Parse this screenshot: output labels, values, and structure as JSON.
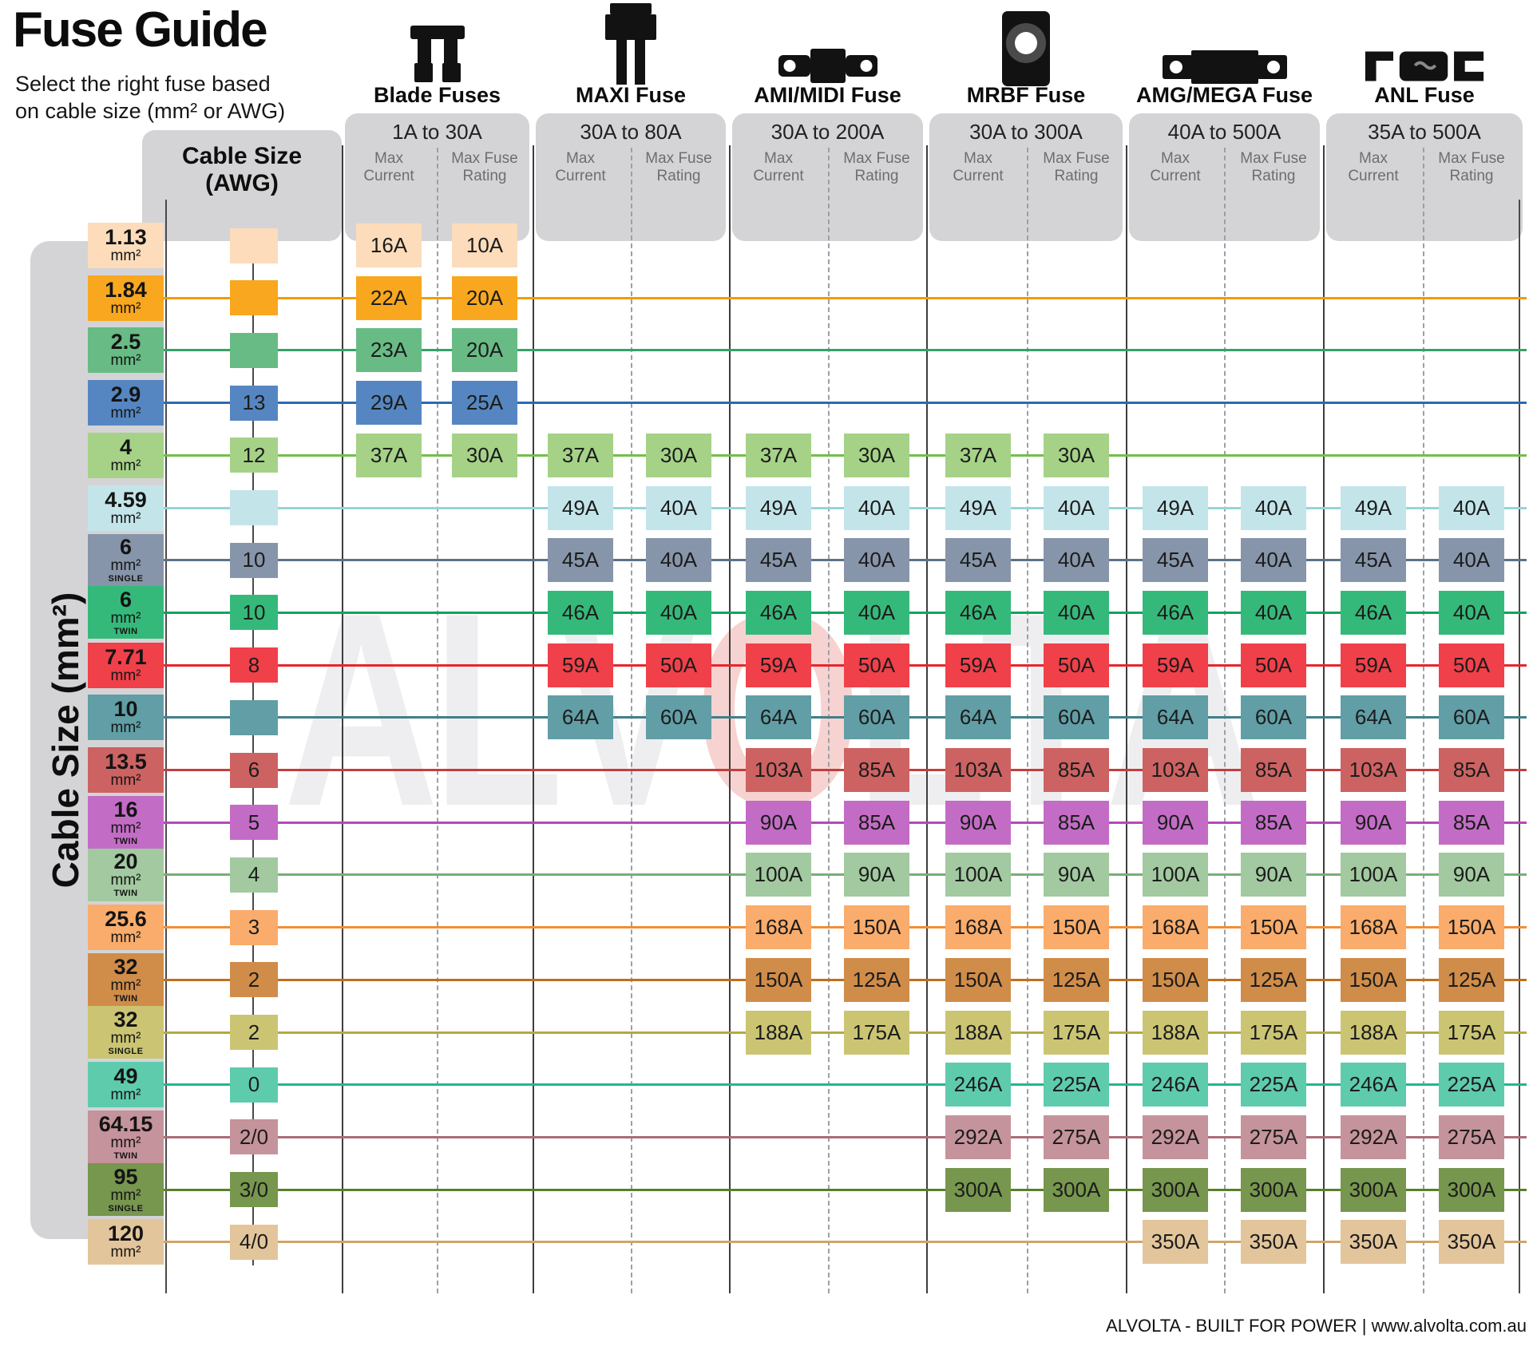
{
  "page": {
    "title": "Fuse Guide",
    "subtitle1": "Select the right fuse based",
    "subtitle2": "on cable size (mm² or AWG)",
    "watermark": "ALVOLTA",
    "footer": "ALVOLTA - BUILT FOR POWER | www.alvolta.com.au"
  },
  "labels": {
    "axis": "Cable Size (mm²)",
    "awg_line1": "Cable Size",
    "awg_line2": "(AWG)"
  },
  "col_subheaders": {
    "current": [
      "Max",
      "Current"
    ],
    "fuse_rating": [
      "Max Fuse",
      "Rating"
    ]
  },
  "chart_data": {
    "type": "table",
    "title": "Fuse Guide",
    "unit": "mm²",
    "columns_per_group": [
      "Max Current",
      "Max Fuse Rating"
    ],
    "groups": [
      {
        "id": "blade",
        "name": "Blade Fuses",
        "range": "1A to 30A",
        "icon": "blade-fuse-icon"
      },
      {
        "id": "maxi",
        "name": "MAXI Fuse",
        "range": "30A to 80A",
        "icon": "maxi-fuse-icon"
      },
      {
        "id": "amimidi",
        "name": "AMI/MIDI Fuse",
        "range": "30A to 200A",
        "icon": "ami-midi-fuse-icon"
      },
      {
        "id": "mrbf",
        "name": "MRBF Fuse",
        "range": "30A to 300A",
        "icon": "mrbf-fuse-icon"
      },
      {
        "id": "amg",
        "name": "AMG/MEGA Fuse",
        "range": "40A to 500A",
        "icon": "amg-mega-fuse-icon"
      },
      {
        "id": "anl",
        "name": "ANL Fuse",
        "range": "35A to 500A",
        "icon": "anl-fuse-icon"
      }
    ],
    "rows": [
      {
        "size": "1.13",
        "variant": "",
        "awg": "",
        "color": "#fcdcbb",
        "line_color": "",
        "values": {
          "blade": [
            "16A",
            "10A"
          ]
        }
      },
      {
        "size": "1.84",
        "variant": "",
        "awg": "",
        "color": "#f8a71f",
        "line_color": "#f39c00",
        "values": {
          "blade": [
            "22A",
            "20A"
          ]
        }
      },
      {
        "size": "2.5",
        "variant": "",
        "awg": "",
        "color": "#68bb84",
        "line_color": "#36a269",
        "values": {
          "blade": [
            "23A",
            "20A"
          ]
        }
      },
      {
        "size": "2.9",
        "variant": "",
        "awg": "13",
        "color": "#5586c1",
        "line_color": "#2a6ab3",
        "values": {
          "blade": [
            "29A",
            "25A"
          ]
        }
      },
      {
        "size": "4",
        "variant": "",
        "awg": "12",
        "color": "#a5d287",
        "line_color": "#72bf4c",
        "values": {
          "blade": [
            "37A",
            "30A"
          ],
          "maxi": [
            "37A",
            "30A"
          ],
          "amimidi": [
            "37A",
            "30A"
          ],
          "mrbf": [
            "37A",
            "30A"
          ]
        }
      },
      {
        "size": "4.59",
        "variant": "",
        "awg": "",
        "color": "#c3e5ea",
        "line_color": "#96d4dc",
        "values": {
          "maxi": [
            "49A",
            "40A"
          ],
          "amimidi": [
            "49A",
            "40A"
          ],
          "mrbf": [
            "49A",
            "40A"
          ],
          "amg": [
            "49A",
            "40A"
          ],
          "anl": [
            "49A",
            "40A"
          ]
        }
      },
      {
        "size": "6",
        "variant": "SINGLE",
        "awg": "10",
        "color": "#8795aa",
        "line_color": "#5d7288",
        "values": {
          "maxi": [
            "45A",
            "40A"
          ],
          "amimidi": [
            "45A",
            "40A"
          ],
          "mrbf": [
            "45A",
            "40A"
          ],
          "amg": [
            "45A",
            "40A"
          ],
          "anl": [
            "45A",
            "40A"
          ]
        }
      },
      {
        "size": "6",
        "variant": "TWIN",
        "awg": "10",
        "color": "#35b97a",
        "line_color": "#0aa55f",
        "values": {
          "maxi": [
            "46A",
            "40A"
          ],
          "amimidi": [
            "46A",
            "40A"
          ],
          "mrbf": [
            "46A",
            "40A"
          ],
          "amg": [
            "46A",
            "40A"
          ],
          "anl": [
            "46A",
            "40A"
          ]
        }
      },
      {
        "size": "7.71",
        "variant": "",
        "awg": "8",
        "color": "#f04049",
        "line_color": "#e8252e",
        "values": {
          "maxi": [
            "59A",
            "50A"
          ],
          "amimidi": [
            "59A",
            "50A"
          ],
          "mrbf": [
            "59A",
            "50A"
          ],
          "amg": [
            "59A",
            "50A"
          ],
          "anl": [
            "59A",
            "50A"
          ]
        }
      },
      {
        "size": "10",
        "variant": "",
        "awg": "",
        "color": "#619ea6",
        "line_color": "#3f808a",
        "values": {
          "maxi": [
            "64A",
            "60A"
          ],
          "amimidi": [
            "64A",
            "60A"
          ],
          "mrbf": [
            "64A",
            "60A"
          ],
          "amg": [
            "64A",
            "60A"
          ],
          "anl": [
            "64A",
            "60A"
          ]
        }
      },
      {
        "size": "13.5",
        "variant": "",
        "awg": "6",
        "color": "#cd6262",
        "line_color": "#c23e3e",
        "values": {
          "amimidi": [
            "103A",
            "85A"
          ],
          "mrbf": [
            "103A",
            "85A"
          ],
          "amg": [
            "103A",
            "85A"
          ],
          "anl": [
            "103A",
            "85A"
          ]
        }
      },
      {
        "size": "16",
        "variant": "TWIN",
        "awg": "5",
        "color": "#c36cc6",
        "line_color": "#b448bb",
        "values": {
          "amimidi": [
            "90A",
            "85A"
          ],
          "mrbf": [
            "90A",
            "85A"
          ],
          "amg": [
            "90A",
            "85A"
          ],
          "anl": [
            "90A",
            "85A"
          ]
        }
      },
      {
        "size": "20",
        "variant": "TWIN",
        "awg": "4",
        "color": "#a2c9a0",
        "line_color": "#77af75",
        "values": {
          "amimidi": [
            "100A",
            "90A"
          ],
          "mrbf": [
            "100A",
            "90A"
          ],
          "amg": [
            "100A",
            "90A"
          ],
          "anl": [
            "100A",
            "90A"
          ]
        }
      },
      {
        "size": "25.6",
        "variant": "",
        "awg": "3",
        "color": "#f9ac6b",
        "line_color": "#f28d36",
        "values": {
          "amimidi": [
            "168A",
            "150A"
          ],
          "mrbf": [
            "168A",
            "150A"
          ],
          "amg": [
            "168A",
            "150A"
          ],
          "anl": [
            "168A",
            "150A"
          ]
        }
      },
      {
        "size": "32",
        "variant": "TWIN",
        "awg": "2",
        "color": "#d08c49",
        "line_color": "#c06f1d",
        "values": {
          "amimidi": [
            "150A",
            "125A"
          ],
          "mrbf": [
            "150A",
            "125A"
          ],
          "amg": [
            "150A",
            "125A"
          ],
          "anl": [
            "150A",
            "125A"
          ]
        }
      },
      {
        "size": "32",
        "variant": "SINGLE",
        "awg": "2",
        "color": "#cbc573",
        "line_color": "#b2aa40",
        "values": {
          "amimidi": [
            "188A",
            "175A"
          ],
          "mrbf": [
            "188A",
            "175A"
          ],
          "amg": [
            "188A",
            "175A"
          ],
          "anl": [
            "188A",
            "175A"
          ]
        }
      },
      {
        "size": "49",
        "variant": "",
        "awg": "0",
        "color": "#5ecbad",
        "line_color": "#23b78e",
        "values": {
          "mrbf": [
            "246A",
            "225A"
          ],
          "amg": [
            "246A",
            "225A"
          ],
          "anl": [
            "246A",
            "225A"
          ]
        }
      },
      {
        "size": "64.15",
        "variant": "TWIN",
        "awg": "2/0",
        "color": "#c5939b",
        "line_color": "#ac6c77",
        "values": {
          "mrbf": [
            "292A",
            "275A"
          ],
          "amg": [
            "292A",
            "275A"
          ],
          "anl": [
            "292A",
            "275A"
          ]
        }
      },
      {
        "size": "95",
        "variant": "SINGLE",
        "awg": "3/0",
        "color": "#77964e",
        "line_color": "#577f2a",
        "values": {
          "mrbf": [
            "300A",
            "300A"
          ],
          "amg": [
            "300A",
            "300A"
          ],
          "anl": [
            "300A",
            "300A"
          ]
        }
      },
      {
        "size": "120",
        "variant": "",
        "awg": "4/0",
        "color": "#e3c59b",
        "line_color": "#d1a468",
        "values": {
          "amg": [
            "350A",
            "350A"
          ],
          "anl": [
            "350A",
            "350A"
          ]
        }
      }
    ]
  }
}
